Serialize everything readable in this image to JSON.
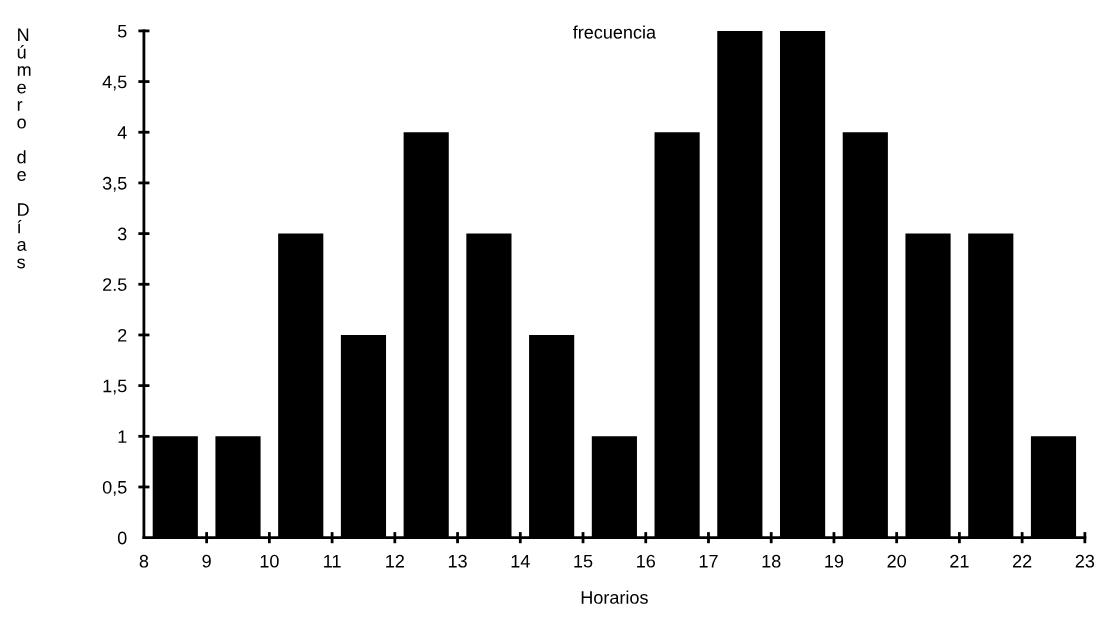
{
  "chart_data": {
    "type": "histogram",
    "title": "frecuencia",
    "xlabel": "Horarios",
    "ylabel": "Número de Días",
    "bins": [
      8,
      9,
      10,
      11,
      12,
      13,
      14,
      15,
      16,
      17,
      18,
      19,
      20,
      21,
      22,
      23
    ],
    "values": [
      1,
      1,
      3,
      2,
      4,
      3,
      2,
      1,
      4,
      5,
      5,
      4,
      3,
      3,
      1
    ],
    "color": "#000000",
    "xlim": [
      8,
      23
    ],
    "xticks": [
      8,
      9,
      10,
      11,
      12,
      13,
      14,
      15,
      16,
      17,
      18,
      19,
      20,
      21,
      22,
      23
    ],
    "ylim": [
      0,
      5
    ],
    "yticks": [
      0,
      {
        "value": 0.5,
        "label": "0,5"
      },
      1,
      {
        "value": 1.5,
        "label": "1,5"
      },
      2,
      {
        "value": 2.5,
        "label": "2.5"
      },
      3,
      {
        "value": 3.5,
        "label": "3,5"
      },
      4,
      {
        "value": 4.5,
        "label": "4,5"
      },
      5
    ],
    "grid": false
  }
}
